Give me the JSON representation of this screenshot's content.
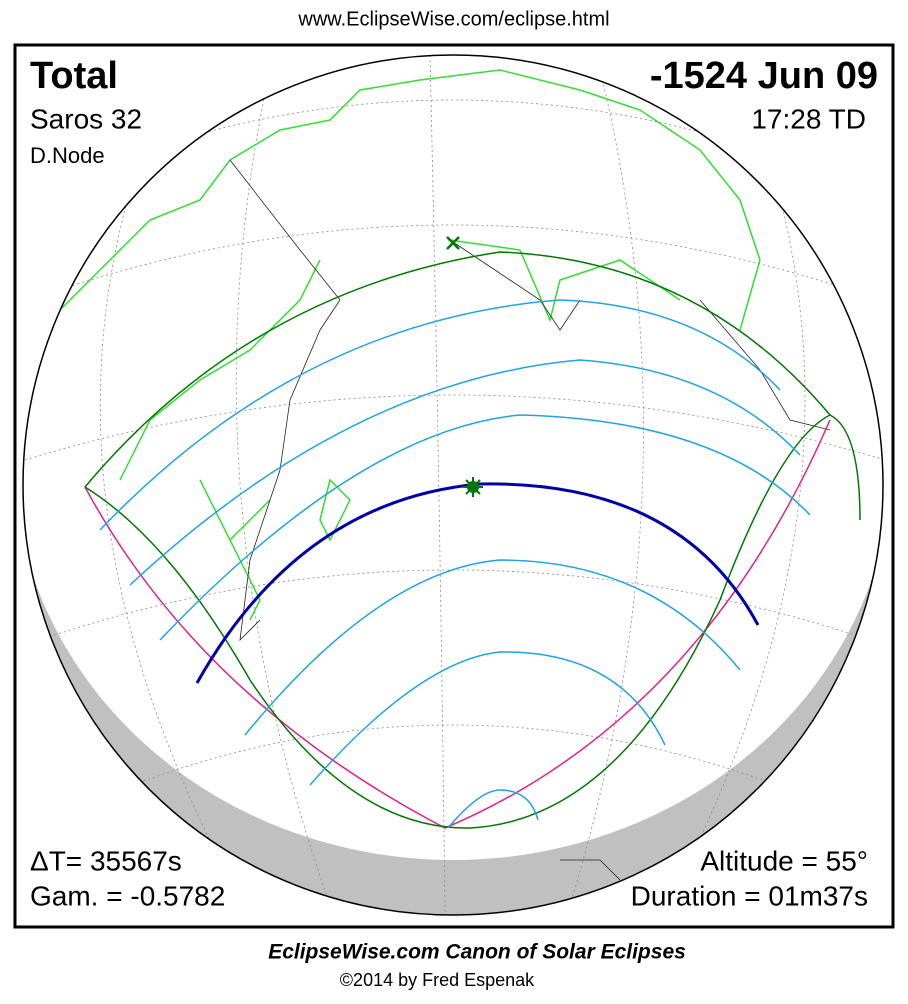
{
  "header": {
    "url": "www.EclipseWise.com/eclipse.html"
  },
  "map": {
    "type": "Total",
    "date": "-1524 Jun 09",
    "saros": "Saros  32",
    "time": "17:28 TD",
    "node": "D.Node",
    "delta_t": "ΔT=  35567s",
    "altitude": "Altitude = 55°",
    "gamma": "Gam. = -0.5782",
    "duration": "Duration = 01m37s"
  },
  "footer": {
    "title": "EclipseWise.com Canon of Solar Eclipses",
    "copyright": "©2014 by Fred Espenak"
  }
}
